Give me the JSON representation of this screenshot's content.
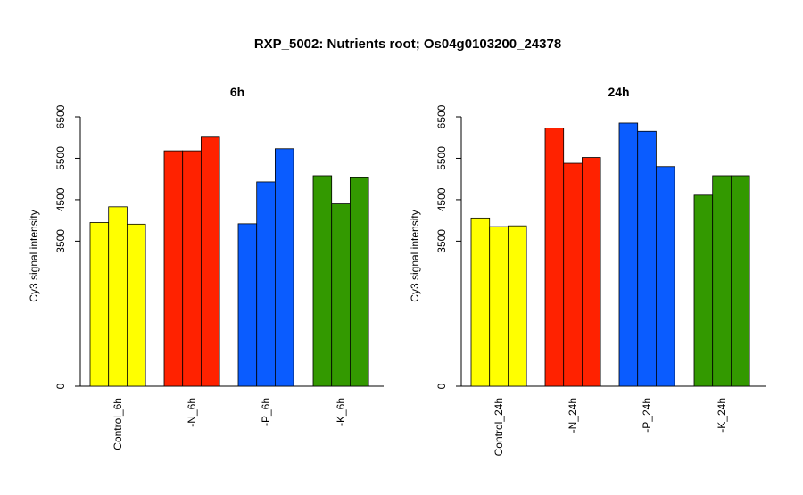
{
  "figure": {
    "title": "RXP_5002: Nutrients root; Os04g0103200_24378"
  },
  "chart_data": [
    {
      "type": "bar",
      "title": "6h",
      "xlabel": "",
      "ylabel": "Cy3 signal intensity",
      "ylim": [
        0,
        6500
      ],
      "yticks": [
        0,
        3500,
        4500,
        5500,
        6500
      ],
      "grid": false,
      "categories": [
        "Control_6h",
        "-N_6h",
        "-P_6h",
        "-K_6h"
      ],
      "category_colors": [
        "#ffff00",
        "#ff2200",
        "#0a5cff",
        "#339900"
      ],
      "values": [
        [
          3950,
          4330,
          3910
        ],
        [
          5680,
          5680,
          6010
        ],
        [
          3920,
          4930,
          5730
        ],
        [
          5080,
          4400,
          5030
        ]
      ]
    },
    {
      "type": "bar",
      "title": "24h",
      "xlabel": "",
      "ylabel": "Cy3 signal intensity",
      "ylim": [
        0,
        6500
      ],
      "yticks": [
        0,
        3500,
        4500,
        5500,
        6500
      ],
      "grid": false,
      "categories": [
        "Control_24h",
        "-N_24h",
        "-P_24h",
        "-K_24h"
      ],
      "category_colors": [
        "#ffff00",
        "#ff2200",
        "#0a5cff",
        "#339900"
      ],
      "values": [
        [
          4060,
          3850,
          3870
        ],
        [
          6230,
          5380,
          5520
        ],
        [
          6350,
          6150,
          5300
        ],
        [
          4610,
          5080,
          5080
        ]
      ]
    }
  ]
}
